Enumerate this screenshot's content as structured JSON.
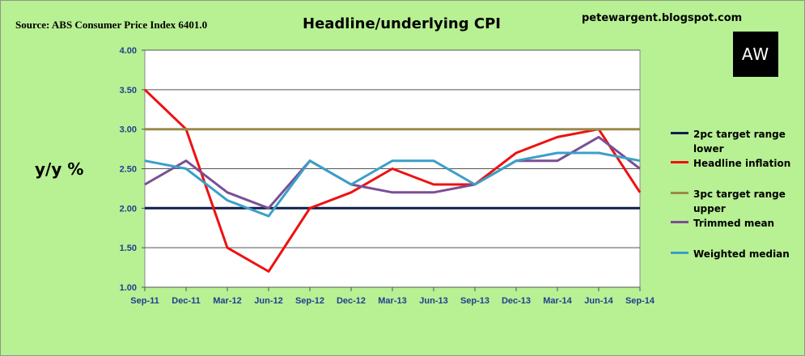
{
  "header": {
    "source": "Source: ABS Consumer Price Index 6401.0",
    "title": "Headline/underlying CPI",
    "blog": "petewargent.blogspot.com",
    "logo_text": "AW"
  },
  "chart_data": {
    "type": "line",
    "title": "Headline/underlying CPI",
    "xlabel": "",
    "ylabel": "y/y %",
    "ylim": [
      1.0,
      4.0
    ],
    "yticks": [
      "1.00",
      "1.50",
      "2.00",
      "2.50",
      "3.00",
      "3.50",
      "4.00"
    ],
    "grid": true,
    "legend": "right",
    "categories": [
      "Sep-11",
      "Dec-11",
      "Mar-12",
      "Jun-12",
      "Sep-12",
      "Dec-12",
      "Mar-13",
      "Jun-13",
      "Sep-13",
      "Dec-13",
      "Mar-14",
      "Jun-14",
      "Sep-14"
    ],
    "series": [
      {
        "name": "2pc target range lower",
        "color": "#0d1f4f",
        "values": [
          2.0,
          2.0,
          2.0,
          2.0,
          2.0,
          2.0,
          2.0,
          2.0,
          2.0,
          2.0,
          2.0,
          2.0,
          2.0
        ]
      },
      {
        "name": "Headline inflation",
        "color": "#ee1111",
        "values": [
          3.5,
          3.0,
          1.5,
          1.2,
          2.0,
          2.2,
          2.5,
          2.3,
          2.3,
          2.7,
          2.9,
          3.0,
          2.2
        ]
      },
      {
        "name": "3pc target range upper",
        "color": "#9a8a4a",
        "values": [
          3.0,
          3.0,
          3.0,
          3.0,
          3.0,
          3.0,
          3.0,
          3.0,
          3.0,
          3.0,
          3.0,
          3.0,
          3.0
        ]
      },
      {
        "name": "Trimmed mean",
        "color": "#7a4f95",
        "values": [
          2.3,
          2.6,
          2.2,
          2.0,
          2.6,
          2.3,
          2.2,
          2.2,
          2.3,
          2.6,
          2.6,
          2.9,
          2.5
        ]
      },
      {
        "name": "Weighted median",
        "color": "#3aa0c8",
        "values": [
          2.6,
          2.5,
          2.1,
          1.9,
          2.6,
          2.3,
          2.6,
          2.6,
          2.3,
          2.6,
          2.7,
          2.7,
          2.6
        ]
      }
    ]
  }
}
